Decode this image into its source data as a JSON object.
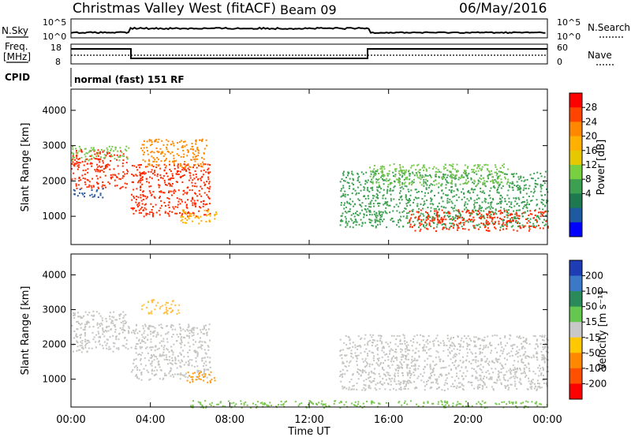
{
  "header": {
    "title": "Christmas Valley West (fitACF)",
    "beam": "Beam 09",
    "date": "06/May/2016"
  },
  "top_panels": {
    "nsky": {
      "label": "N.Sky",
      "ticks": [
        "10^5",
        "10^0"
      ],
      "right_label": "N.Search",
      "right_ticks": [
        "10^5",
        "10^0"
      ]
    },
    "freq": {
      "label_line1": "Freq.",
      "label_line2": "[MHz]",
      "ticks": [
        "18",
        "8"
      ],
      "right_label": "Nave",
      "right_ticks": [
        "60",
        "0"
      ],
      "step_segments": [
        {
          "x0": "00:00",
          "x1": "03:00",
          "level": "high"
        },
        {
          "x0": "03:00",
          "x1": "15:00",
          "level": "low"
        },
        {
          "x0": "15:00",
          "x1": "24:00",
          "level": "high"
        }
      ]
    },
    "cpid": {
      "label": "CPID",
      "text": "normal (fast) 151 RF"
    }
  },
  "chart_data": [
    {
      "type": "heatmap",
      "name": "power",
      "ylabel": "Slant Range [km]",
      "yticks": [
        1000,
        2000,
        3000,
        4000
      ],
      "ylim": [
        200,
        4600
      ],
      "xlim": [
        0,
        24
      ],
      "colorbar": {
        "label": "Power [dB]",
        "ticks": [
          "28",
          "24",
          "20",
          "16",
          "12",
          "8",
          "4"
        ],
        "colors": [
          "#ff0000",
          "#ff4400",
          "#ff8800",
          "#ffb000",
          "#e6c800",
          "#78d040",
          "#3ca050",
          "#1e7850",
          "#1e5aa0",
          "#0000ff"
        ]
      },
      "regions": [
        {
          "t0": 0.0,
          "t1": 2.9,
          "r0": 1800,
          "r1": 2900,
          "color": "#ff2a00"
        },
        {
          "t0": 0.0,
          "t1": 2.9,
          "r0": 2600,
          "r1": 3000,
          "color": "#78c850"
        },
        {
          "t0": 0.0,
          "t1": 1.6,
          "r0": 1550,
          "r1": 1800,
          "color": "#2a5aa0"
        },
        {
          "t0": 3.0,
          "t1": 7.0,
          "r0": 1000,
          "r1": 2500,
          "color": "#ff2a00"
        },
        {
          "t0": 3.5,
          "t1": 6.8,
          "r0": 2400,
          "r1": 3200,
          "color": "#ff8800"
        },
        {
          "t0": 5.5,
          "t1": 7.3,
          "r0": 800,
          "r1": 1200,
          "color": "#ffb000"
        },
        {
          "t0": 13.5,
          "t1": 24.0,
          "r0": 700,
          "r1": 2300,
          "color": "#3ca050"
        },
        {
          "t0": 17.0,
          "t1": 24.0,
          "r0": 600,
          "r1": 1200,
          "color": "#ff2a00"
        },
        {
          "t0": 15.0,
          "t1": 22.0,
          "r0": 1900,
          "r1": 2500,
          "color": "#78c850"
        }
      ]
    },
    {
      "type": "heatmap",
      "name": "velocity",
      "ylabel": "Slant Range [km]",
      "yticks": [
        1000,
        2000,
        3000,
        4000
      ],
      "ylim": [
        200,
        4600
      ],
      "xlim": [
        0,
        24
      ],
      "xticks": [
        "00:00",
        "04:00",
        "08:00",
        "12:00",
        "16:00",
        "20:00",
        "00:00"
      ],
      "xlabel": "Time UT",
      "colorbar": {
        "label": "Velocity [m s⁻¹]",
        "ticks": [
          "200",
          "100",
          "50",
          "15",
          "-15",
          "-50",
          "-100",
          "-200"
        ],
        "colors": [
          "#1e3cb4",
          "#3c78c8",
          "#2a8a5a",
          "#64c850",
          "#c8c8c8",
          "#ffc800",
          "#ff8800",
          "#ff5000",
          "#ff0000"
        ]
      },
      "regions": [
        {
          "t0": 0.0,
          "t1": 2.9,
          "r0": 1800,
          "r1": 3000,
          "color": "#c4c4c0"
        },
        {
          "t0": 3.0,
          "t1": 7.0,
          "r0": 1000,
          "r1": 2600,
          "color": "#c4c4c0"
        },
        {
          "t0": 3.5,
          "t1": 5.5,
          "r0": 2900,
          "r1": 3300,
          "color": "#ffc040"
        },
        {
          "t0": 5.8,
          "t1": 7.3,
          "r0": 900,
          "r1": 1250,
          "color": "#ff9a10"
        },
        {
          "t0": 13.5,
          "t1": 24.0,
          "r0": 700,
          "r1": 2300,
          "color": "#c4c4c0"
        },
        {
          "t0": 6.0,
          "t1": 24.0,
          "r0": 200,
          "r1": 400,
          "color": "#78c850"
        }
      ]
    }
  ]
}
